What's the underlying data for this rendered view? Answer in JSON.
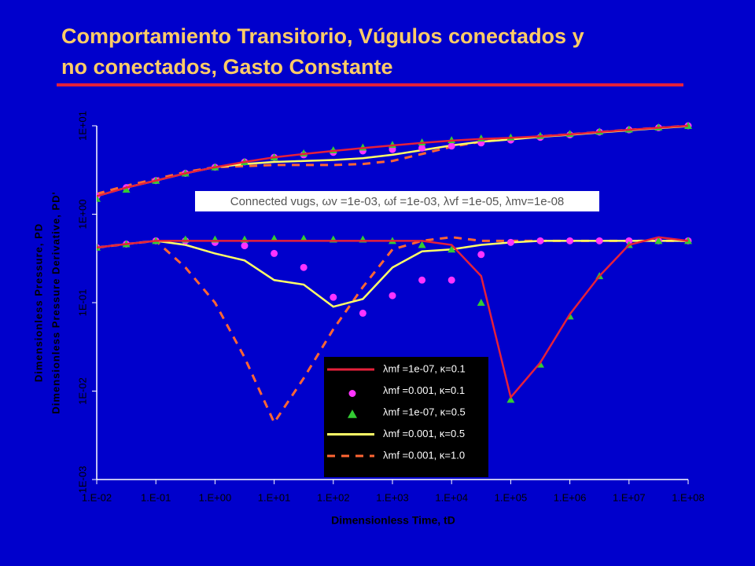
{
  "chart_data": {
    "type": "line",
    "title": [
      "Comportamiento Transitorio, Vúgulos conectados y",
      "no conectados, Gasto Constante"
    ],
    "annotation": "Connected vugs, ωv =1e-03, ωf =1e-03, λvf =1e-05, λmv=1e-08",
    "xlabel": "Dimensionless Time, tD",
    "ylabel": [
      "Dimensionless Pressure, PD",
      "Dimensionless Pressure Derivative, PD'"
    ],
    "xscale": "log",
    "yscale": "log",
    "xlim": [
      0.01,
      100000000
    ],
    "ylim": [
      0.001,
      10
    ],
    "xticks": [
      {
        "value": 0.01,
        "label": "1.E-02"
      },
      {
        "value": 0.1,
        "label": "1.E-01"
      },
      {
        "value": 1,
        "label": "1.E+00"
      },
      {
        "value": 10,
        "label": "1.E+01"
      },
      {
        "value": 100,
        "label": "1.E+02"
      },
      {
        "value": 1000,
        "label": "1.E+03"
      },
      {
        "value": 10000,
        "label": "1.E+04"
      },
      {
        "value": 100000,
        "label": "1.E+05"
      },
      {
        "value": 1000000,
        "label": "1.E+06"
      },
      {
        "value": 10000000,
        "label": "1.E+07"
      },
      {
        "value": 100000000,
        "label": "1.E+08"
      }
    ],
    "yticks": [
      {
        "value": 0.001,
        "label": "1E-03"
      },
      {
        "value": 0.01,
        "label": "1E-02"
      },
      {
        "value": 0.1,
        "label": "1E-01"
      },
      {
        "value": 1,
        "label": "1E+00"
      },
      {
        "value": 10,
        "label": "1E+01"
      }
    ],
    "x": [
      0.01,
      0.0316,
      0.1,
      0.316,
      1,
      3.16,
      10,
      31.6,
      100,
      316,
      1000,
      3160,
      10000,
      31600,
      100000,
      316000,
      1000000,
      3160000,
      10000000,
      31600000,
      100000000
    ],
    "series": [
      {
        "name": "λmf =1e-07, κ=0.1",
        "color": "#e5203a",
        "marker": "line",
        "values": [
          1.6,
          2.0,
          2.4,
          2.9,
          3.4,
          3.9,
          4.4,
          4.8,
          5.2,
          5.6,
          6.0,
          6.4,
          6.8,
          7.1,
          7.3,
          7.6,
          8.0,
          8.5,
          9.0,
          9.5,
          10
        ],
        "derivative": [
          0.42,
          0.46,
          0.5,
          0.5,
          0.5,
          0.5,
          0.5,
          0.5,
          0.5,
          0.5,
          0.5,
          0.5,
          0.45,
          0.2,
          0.0085,
          0.021,
          0.074,
          0.2,
          0.45,
          0.55,
          0.5
        ]
      },
      {
        "name": "λmf =0.001, κ=0.1",
        "color": "#ff33ff",
        "marker": "circle",
        "values": [
          1.6,
          2.0,
          2.4,
          2.9,
          3.4,
          3.9,
          4.4,
          4.7,
          5.0,
          5.2,
          5.4,
          5.6,
          5.9,
          6.4,
          6.9,
          7.4,
          7.9,
          8.5,
          9.0,
          9.5,
          10
        ],
        "derivative": [
          0.42,
          0.46,
          0.5,
          0.5,
          0.48,
          0.44,
          0.36,
          0.25,
          0.115,
          0.076,
          0.12,
          0.18,
          0.18,
          0.35,
          0.48,
          0.5,
          0.5,
          0.5,
          0.5,
          0.5,
          0.5
        ]
      },
      {
        "name": "λmf =1e-07, κ=0.5",
        "color": "#33cc33",
        "marker": "triangle",
        "values": [
          1.5,
          1.9,
          2.4,
          2.9,
          3.4,
          3.9,
          4.4,
          4.9,
          5.3,
          5.7,
          6.1,
          6.5,
          6.9,
          7.2,
          7.4,
          7.7,
          8.1,
          8.6,
          9.1,
          9.6,
          10
        ],
        "derivative": [
          0.42,
          0.46,
          0.5,
          0.52,
          0.52,
          0.52,
          0.53,
          0.53,
          0.52,
          0.52,
          0.5,
          0.45,
          0.4,
          0.1,
          0.008,
          0.02,
          0.07,
          0.2,
          0.45,
          0.5,
          0.5
        ]
      },
      {
        "name": "λmf =0.001, κ=0.5",
        "color": "#ffff66",
        "marker": "line",
        "values": [
          1.6,
          2.0,
          2.4,
          2.9,
          3.4,
          3.7,
          3.9,
          4.0,
          4.1,
          4.3,
          4.7,
          5.3,
          6.0,
          6.6,
          7.0,
          7.5,
          7.9,
          8.4,
          8.9,
          9.4,
          9.9
        ],
        "derivative": [
          0.42,
          0.46,
          0.5,
          0.45,
          0.36,
          0.3,
          0.18,
          0.16,
          0.09,
          0.11,
          0.25,
          0.38,
          0.4,
          0.45,
          0.48,
          0.5,
          0.5,
          0.5,
          0.5,
          0.5,
          0.5
        ]
      },
      {
        "name": "λmf =0.001, κ=1.0",
        "color": "#ff6633",
        "marker": "dash",
        "values": [
          1.7,
          2.1,
          2.5,
          3.0,
          3.4,
          3.5,
          3.6,
          3.6,
          3.6,
          3.7,
          4.0,
          4.8,
          5.8,
          6.6,
          7.1,
          7.6,
          8.0,
          8.5,
          9.0,
          9.5,
          10
        ],
        "derivative": [
          0.42,
          0.46,
          0.5,
          0.25,
          0.1,
          0.024,
          0.0044,
          0.014,
          0.05,
          0.15,
          0.4,
          0.5,
          0.55,
          0.5,
          0.5,
          0.5,
          0.5,
          0.5,
          0.5,
          0.5,
          0.5
        ]
      }
    ]
  }
}
